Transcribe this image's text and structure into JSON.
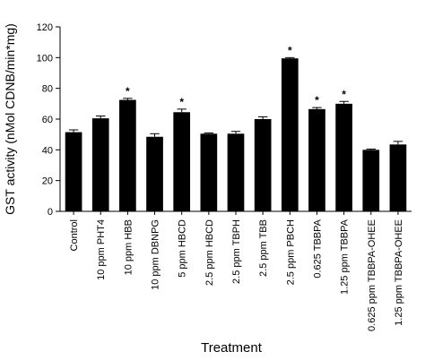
{
  "chart_data": {
    "type": "bar",
    "title": "",
    "xlabel": "Treatment",
    "ylabel": "GST activity (nMol CDNB/min*mg)",
    "ylim": [
      0,
      120
    ],
    "yticks": [
      0,
      20,
      40,
      60,
      80,
      100,
      120
    ],
    "grid": false,
    "legend": "none",
    "bar_color": "#000000",
    "categories": [
      "Control",
      "10 ppm PHT4",
      "10 ppm HBB",
      "10 ppm DBNPG",
      "5 ppm HBCD",
      "2.5 ppm HBCD",
      "2.5 ppm TBPH",
      "2.5 ppm TBB",
      "2.5 ppm PBCH",
      "0.625 TBBPA",
      "1.25 ppm TBBPA",
      "0.625 ppm TBBPA-OHEE",
      "1.25 ppm TBBPA-OHEE"
    ],
    "values": [
      51.5,
      60.5,
      72.5,
      48.5,
      64.5,
      50.5,
      50.5,
      60,
      99.5,
      66.5,
      70,
      40,
      43.5
    ],
    "errors": [
      1.5,
      1.5,
      1,
      2,
      2,
      0.5,
      1.5,
      1.5,
      0.5,
      1,
      1.5,
      0.5,
      2
    ],
    "significance_marker": "*",
    "significant": [
      false,
      false,
      true,
      false,
      true,
      false,
      false,
      false,
      true,
      true,
      true,
      false,
      false
    ]
  }
}
